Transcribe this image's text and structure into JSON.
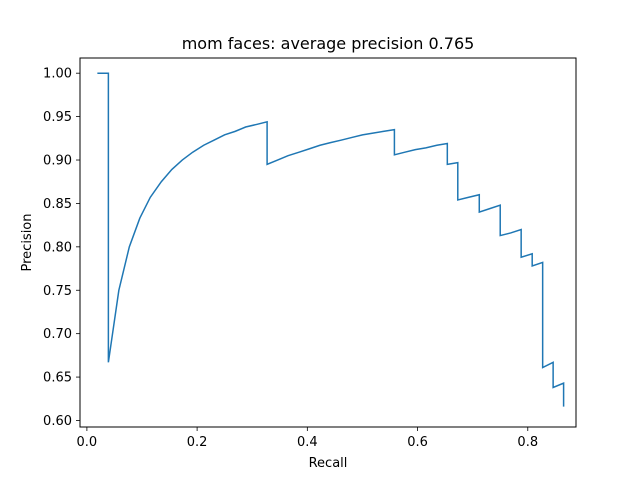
{
  "chart_data": {
    "type": "line",
    "title": "mom faces: average precision 0.765",
    "xlabel": "Recall",
    "ylabel": "Precision",
    "xlim": [
      -0.0125,
      0.8875
    ],
    "ylim": [
      0.5925,
      1.0175
    ],
    "xticks": [
      0.0,
      0.2,
      0.4,
      0.6,
      0.8
    ],
    "xtick_labels": [
      "0.0",
      "0.2",
      "0.4",
      "0.6",
      "0.8"
    ],
    "yticks": [
      0.6,
      0.65,
      0.7,
      0.75,
      0.8,
      0.85,
      0.9,
      0.95,
      1.0
    ],
    "ytick_labels": [
      "0.60",
      "0.65",
      "0.70",
      "0.75",
      "0.80",
      "0.85",
      "0.90",
      "0.95",
      "1.00"
    ],
    "grid": false,
    "color": "#1f77b4",
    "series": [
      {
        "x": [
          0.019,
          0.039,
          0.039,
          0.058,
          0.077,
          0.096,
          0.115,
          0.135,
          0.154,
          0.173,
          0.192,
          0.212,
          0.231,
          0.25,
          0.269,
          0.288,
          0.308,
          0.327,
          0.327,
          0.346,
          0.365,
          0.385,
          0.404,
          0.423,
          0.442,
          0.462,
          0.481,
          0.5,
          0.519,
          0.538,
          0.558,
          0.558,
          0.577,
          0.596,
          0.615,
          0.635,
          0.654,
          0.654,
          0.673,
          0.673,
          0.692,
          0.712,
          0.712,
          0.731,
          0.75,
          0.75,
          0.769,
          0.788,
          0.788,
          0.808,
          0.808,
          0.827,
          0.827,
          0.846,
          0.846,
          0.865,
          0.865
        ],
        "y": [
          1.0,
          1.0,
          0.667,
          0.75,
          0.8,
          0.833,
          0.857,
          0.875,
          0.889,
          0.9,
          0.909,
          0.917,
          0.923,
          0.929,
          0.933,
          0.938,
          0.941,
          0.944,
          0.895,
          0.9,
          0.905,
          0.909,
          0.913,
          0.917,
          0.92,
          0.923,
          0.926,
          0.929,
          0.931,
          0.933,
          0.935,
          0.906,
          0.909,
          0.912,
          0.914,
          0.917,
          0.919,
          0.895,
          0.897,
          0.854,
          0.857,
          0.86,
          0.84,
          0.844,
          0.848,
          0.813,
          0.816,
          0.82,
          0.788,
          0.792,
          0.778,
          0.782,
          0.661,
          0.667,
          0.638,
          0.643,
          0.616
        ]
      }
    ]
  }
}
